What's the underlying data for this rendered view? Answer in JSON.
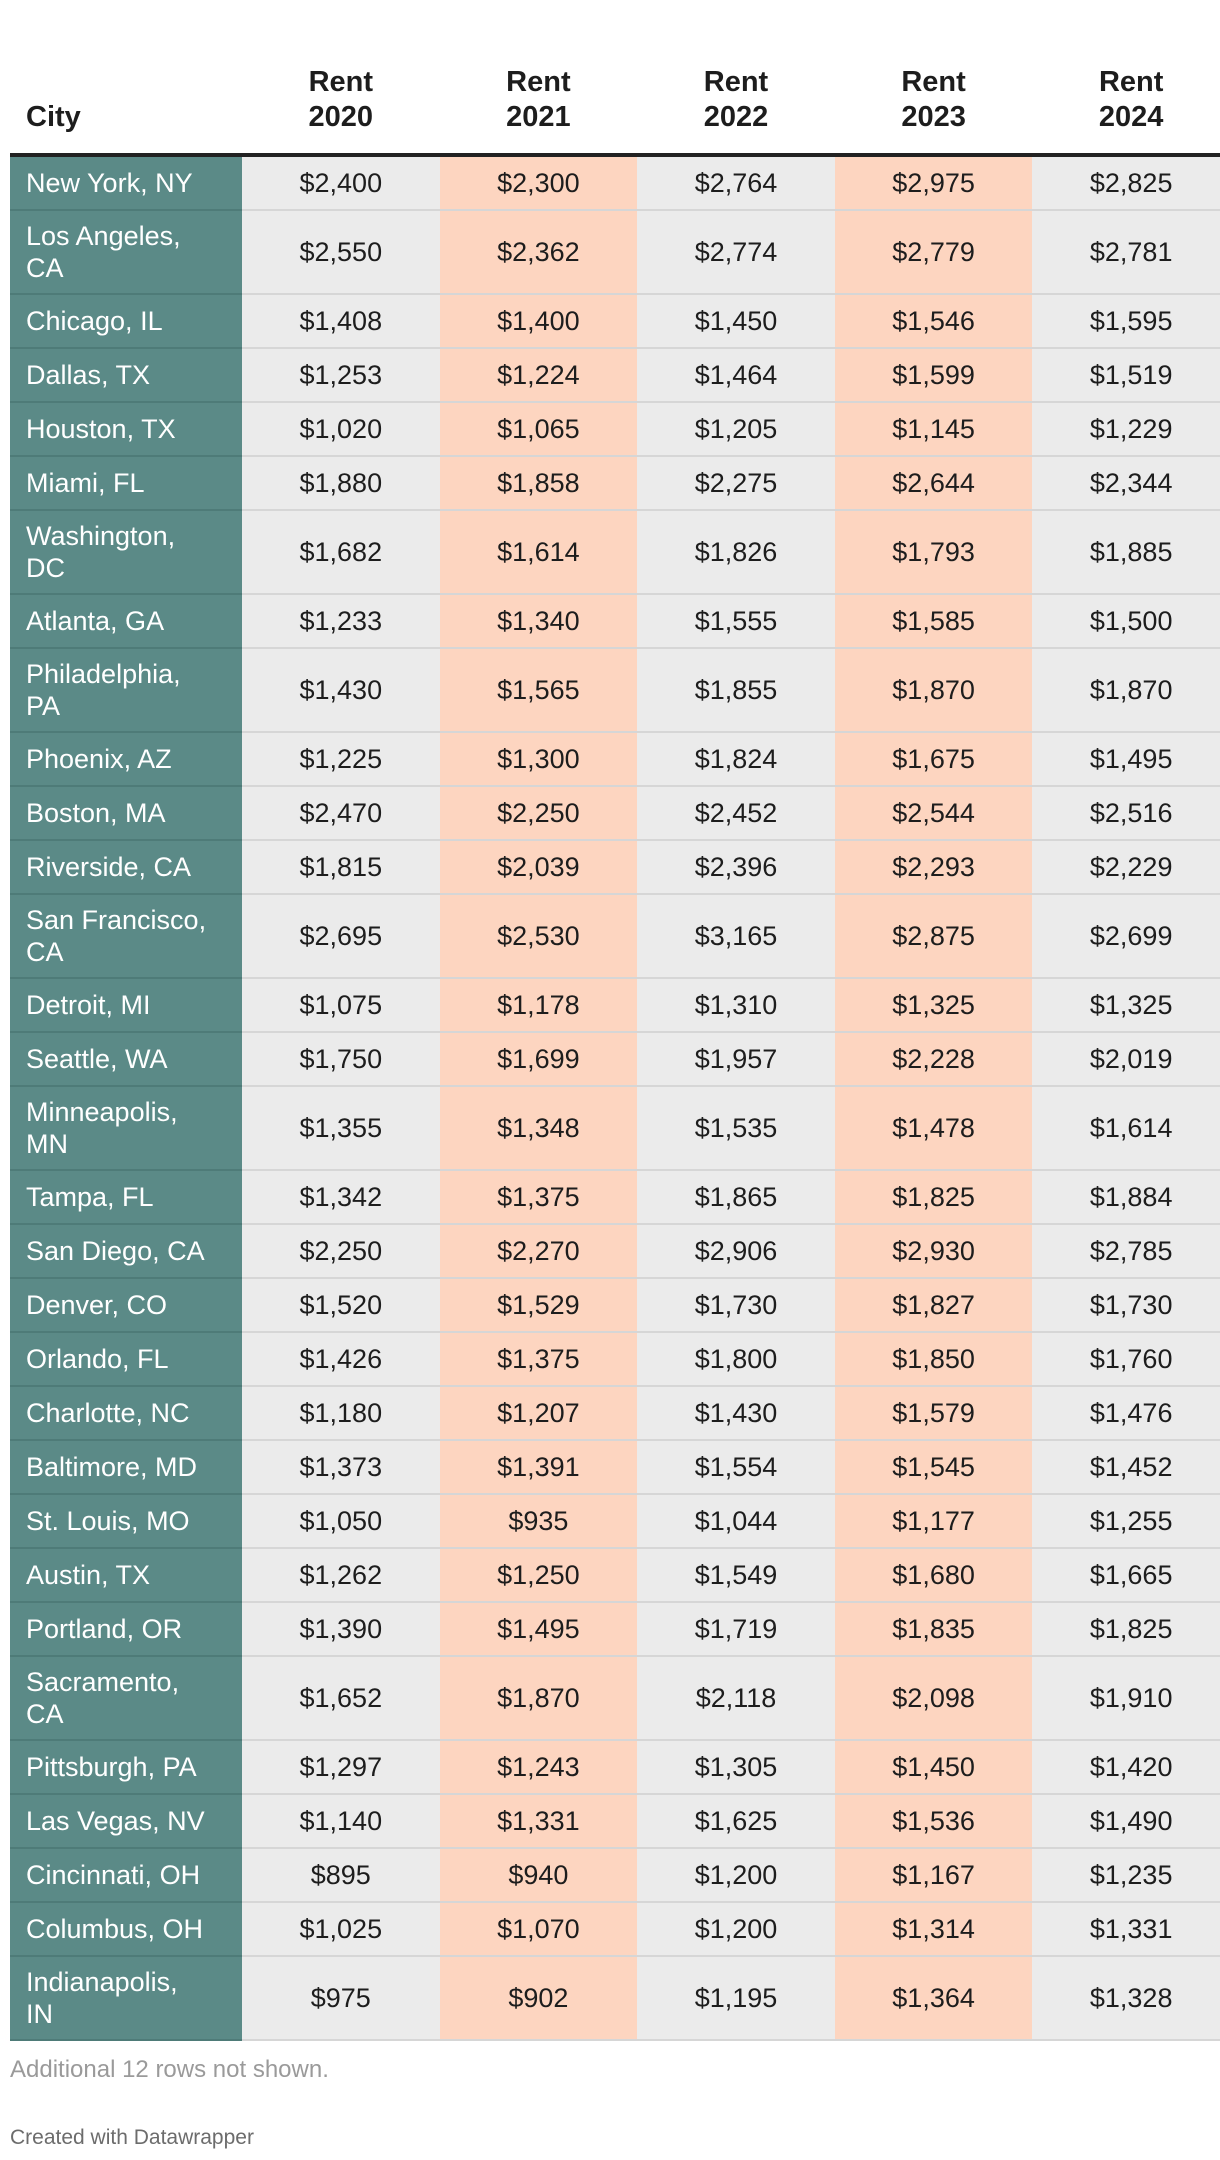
{
  "chart_data": {
    "type": "table",
    "columns": [
      "City",
      "Rent\n2020",
      "Rent\n2021",
      "Rent\n2022",
      "Rent\n2023",
      "Rent\n2024"
    ],
    "rows": [
      {
        "city": "New York, NY",
        "values": [
          "$2,400",
          "$2,300",
          "$2,764",
          "$2,975",
          "$2,825"
        ]
      },
      {
        "city": "Los Angeles, CA",
        "values": [
          "$2,550",
          "$2,362",
          "$2,774",
          "$2,779",
          "$2,781"
        ]
      },
      {
        "city": "Chicago, IL",
        "values": [
          "$1,408",
          "$1,400",
          "$1,450",
          "$1,546",
          "$1,595"
        ]
      },
      {
        "city": "Dallas, TX",
        "values": [
          "$1,253",
          "$1,224",
          "$1,464",
          "$1,599",
          "$1,519"
        ]
      },
      {
        "city": "Houston, TX",
        "values": [
          "$1,020",
          "$1,065",
          "$1,205",
          "$1,145",
          "$1,229"
        ]
      },
      {
        "city": "Miami, FL",
        "values": [
          "$1,880",
          "$1,858",
          "$2,275",
          "$2,644",
          "$2,344"
        ]
      },
      {
        "city": "Washington, DC",
        "values": [
          "$1,682",
          "$1,614",
          "$1,826",
          "$1,793",
          "$1,885"
        ]
      },
      {
        "city": "Atlanta, GA",
        "values": [
          "$1,233",
          "$1,340",
          "$1,555",
          "$1,585",
          "$1,500"
        ]
      },
      {
        "city": "Philadelphia, PA",
        "values": [
          "$1,430",
          "$1,565",
          "$1,855",
          "$1,870",
          "$1,870"
        ]
      },
      {
        "city": "Phoenix, AZ",
        "values": [
          "$1,225",
          "$1,300",
          "$1,824",
          "$1,675",
          "$1,495"
        ]
      },
      {
        "city": "Boston, MA",
        "values": [
          "$2,470",
          "$2,250",
          "$2,452",
          "$2,544",
          "$2,516"
        ]
      },
      {
        "city": "Riverside, CA",
        "values": [
          "$1,815",
          "$2,039",
          "$2,396",
          "$2,293",
          "$2,229"
        ]
      },
      {
        "city": "San Francisco, CA",
        "values": [
          "$2,695",
          "$2,530",
          "$3,165",
          "$2,875",
          "$2,699"
        ]
      },
      {
        "city": "Detroit, MI",
        "values": [
          "$1,075",
          "$1,178",
          "$1,310",
          "$1,325",
          "$1,325"
        ]
      },
      {
        "city": "Seattle, WA",
        "values": [
          "$1,750",
          "$1,699",
          "$1,957",
          "$2,228",
          "$2,019"
        ]
      },
      {
        "city": "Minneapolis, MN",
        "values": [
          "$1,355",
          "$1,348",
          "$1,535",
          "$1,478",
          "$1,614"
        ]
      },
      {
        "city": "Tampa, FL",
        "values": [
          "$1,342",
          "$1,375",
          "$1,865",
          "$1,825",
          "$1,884"
        ]
      },
      {
        "city": "San Diego, CA",
        "values": [
          "$2,250",
          "$2,270",
          "$2,906",
          "$2,930",
          "$2,785"
        ]
      },
      {
        "city": "Denver, CO",
        "values": [
          "$1,520",
          "$1,529",
          "$1,730",
          "$1,827",
          "$1,730"
        ]
      },
      {
        "city": "Orlando, FL",
        "values": [
          "$1,426",
          "$1,375",
          "$1,800",
          "$1,850",
          "$1,760"
        ]
      },
      {
        "city": "Charlotte, NC",
        "values": [
          "$1,180",
          "$1,207",
          "$1,430",
          "$1,579",
          "$1,476"
        ]
      },
      {
        "city": "Baltimore, MD",
        "values": [
          "$1,373",
          "$1,391",
          "$1,554",
          "$1,545",
          "$1,452"
        ]
      },
      {
        "city": "St. Louis, MO",
        "values": [
          "$1,050",
          "$935",
          "$1,044",
          "$1,177",
          "$1,255"
        ]
      },
      {
        "city": "Austin, TX",
        "values": [
          "$1,262",
          "$1,250",
          "$1,549",
          "$1,680",
          "$1,665"
        ]
      },
      {
        "city": "Portland, OR",
        "values": [
          "$1,390",
          "$1,495",
          "$1,719",
          "$1,835",
          "$1,825"
        ]
      },
      {
        "city": "Sacramento, CA",
        "values": [
          "$1,652",
          "$1,870",
          "$2,118",
          "$2,098",
          "$1,910"
        ]
      },
      {
        "city": "Pittsburgh, PA",
        "values": [
          "$1,297",
          "$1,243",
          "$1,305",
          "$1,450",
          "$1,420"
        ]
      },
      {
        "city": "Las Vegas, NV",
        "values": [
          "$1,140",
          "$1,331",
          "$1,625",
          "$1,536",
          "$1,490"
        ]
      },
      {
        "city": "Cincinnati, OH",
        "values": [
          "$895",
          "$940",
          "$1,200",
          "$1,167",
          "$1,235"
        ]
      },
      {
        "city": "Columbus, OH",
        "values": [
          "$1,025",
          "$1,070",
          "$1,200",
          "$1,314",
          "$1,331"
        ]
      },
      {
        "city": "Indianapolis, IN",
        "values": [
          "$975",
          "$902",
          "$1,195",
          "$1,364",
          "$1,328"
        ]
      }
    ],
    "note": "Additional 12 rows not shown.",
    "credit": "Created with Datawrapper"
  },
  "colors": {
    "city_column": "#5b8a87",
    "gray_column": "#ebebeb",
    "peach_column": "#fdd5c0"
  }
}
